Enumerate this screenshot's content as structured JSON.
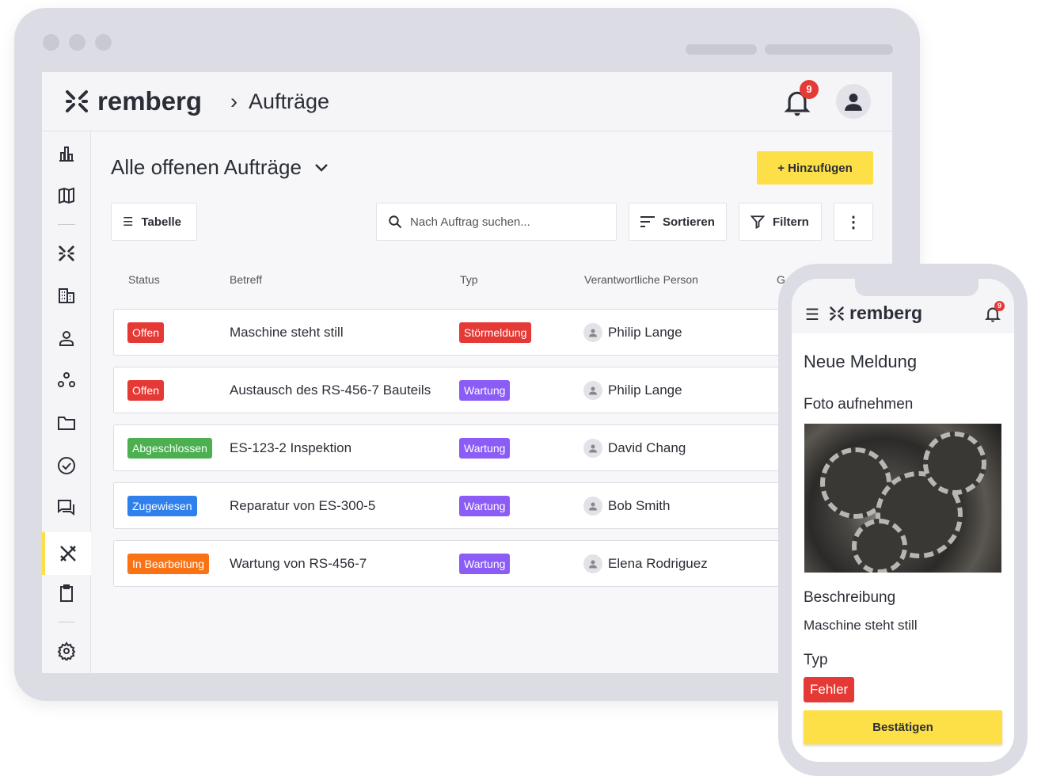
{
  "header": {
    "brand": "remberg",
    "breadcrumb": "Aufträge",
    "notifications": "9"
  },
  "page": {
    "title": "Alle offenen Aufträge",
    "add_label": "+ Hinzufügen"
  },
  "toolbar": {
    "view_label": "Tabelle",
    "search_placeholder": "Nach Auftrag suchen...",
    "sort_label": "Sortieren",
    "filter_label": "Filtern"
  },
  "table": {
    "columns": [
      "Status",
      "Betreff",
      "Typ",
      "Verantwortliche Person",
      "G"
    ],
    "rows": [
      {
        "status": "Offen",
        "status_color": "#e53935",
        "subject": "Maschine steht still",
        "type": "Störmeldung",
        "type_color": "#e53935",
        "person": "Philip Lange"
      },
      {
        "status": "Offen",
        "status_color": "#e53935",
        "subject": "Austausch des RS-456-7 Bauteils",
        "type": "Wartung",
        "type_color": "#8b5cf6",
        "person": "Philip Lange"
      },
      {
        "status": "Abgeschlossen",
        "status_color": "#4caf50",
        "subject": "ES-123-2 Inspektion",
        "type": "Wartung",
        "type_color": "#8b5cf6",
        "person": "David Chang"
      },
      {
        "status": "Zugewiesen",
        "status_color": "#2f80ed",
        "subject": "Reparatur von ES-300-5",
        "type": "Wartung",
        "type_color": "#8b5cf6",
        "person": "Bob Smith"
      },
      {
        "status": "In Bearbeitung",
        "status_color": "#f97316",
        "subject": "Wartung von RS-456-7",
        "type": "Wartung",
        "type_color": "#8b5cf6",
        "person": "Elena Rodriguez"
      }
    ]
  },
  "mobile": {
    "brand": "remberg",
    "notifications": "9",
    "title": "Neue Meldung",
    "photo_label": "Foto aufnehmen",
    "desc_label": "Beschreibung",
    "desc_value": "Maschine steht still",
    "type_label": "Typ",
    "type_value": "Fehler",
    "confirm_label": "Bestätigen"
  },
  "colors": {
    "accent": "#fde047",
    "danger": "#e53935"
  }
}
